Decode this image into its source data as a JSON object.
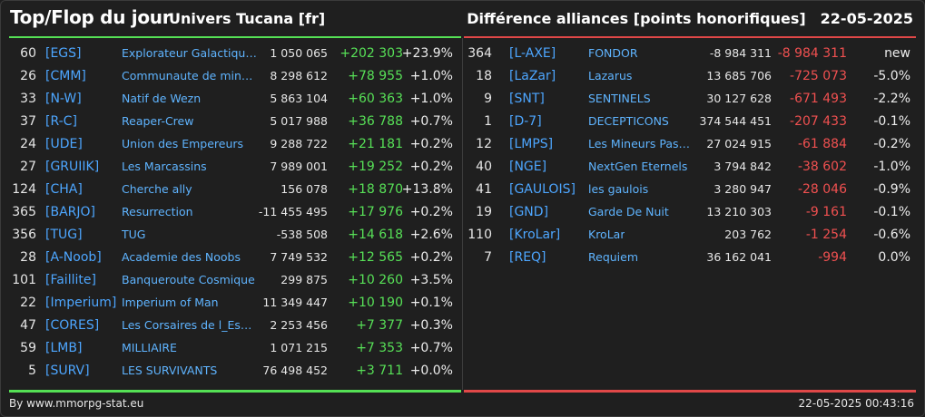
{
  "header": {
    "title": "Top/Flop du jour",
    "subtitle": "Univers Tucana [fr]",
    "right_title": "Différence alliances [points honorifiques]",
    "date": "22-05-2025"
  },
  "colors": {
    "positive": "#57e057",
    "negative": "#ef5050",
    "link": "#5fb4ff",
    "top_bar": "#55e055",
    "flop_bar": "#e04848"
  },
  "top": [
    {
      "rank": "60",
      "tag": "[EGS]",
      "name": "Explorateur Galactique S",
      "total": "1 050 065",
      "diff": "+202 303",
      "pct": "+23.9%"
    },
    {
      "rank": "26",
      "tag": "[CMM]",
      "name": "Communaute de mineurs",
      "total": "8 298 612",
      "diff": "+78 955",
      "pct": "+1.0%"
    },
    {
      "rank": "33",
      "tag": "[N-W]",
      "name": "Natif de Wezn",
      "total": "5 863 104",
      "diff": "+60 363",
      "pct": "+1.0%"
    },
    {
      "rank": "37",
      "tag": "[R-C]",
      "name": "Reaper-Crew",
      "total": "5 017 988",
      "diff": "+36 788",
      "pct": "+0.7%"
    },
    {
      "rank": "24",
      "tag": "[UDE]",
      "name": "Union des Empereurs",
      "total": "9 288 722",
      "diff": "+21 181",
      "pct": "+0.2%"
    },
    {
      "rank": "27",
      "tag": "[GRUIIK]",
      "name": "Les Marcassins",
      "total": "7 989 001",
      "diff": "+19 252",
      "pct": "+0.2%"
    },
    {
      "rank": "124",
      "tag": "[CHA]",
      "name": "Cherche ally",
      "total": "156 078",
      "diff": "+18 870",
      "pct": "+13.8%"
    },
    {
      "rank": "365",
      "tag": "[BARJO]",
      "name": "Resurrection",
      "total": "-11 455 495",
      "diff": "+17 976",
      "pct": "+0.2%"
    },
    {
      "rank": "356",
      "tag": "[TUG]",
      "name": "TUG",
      "total": "-538 508",
      "diff": "+14 618",
      "pct": "+2.6%"
    },
    {
      "rank": "28",
      "tag": "[A-Noob]",
      "name": "Academie des Noobs",
      "total": "7 749 532",
      "diff": "+12 565",
      "pct": "+0.2%"
    },
    {
      "rank": "101",
      "tag": "[Faillite]",
      "name": "Banqueroute Cosmique",
      "total": "299 875",
      "diff": "+10 260",
      "pct": "+3.5%"
    },
    {
      "rank": "22",
      "tag": "[Imperium]",
      "name": "Imperium of Man",
      "total": "11 349 447",
      "diff": "+10 190",
      "pct": "+0.1%"
    },
    {
      "rank": "47",
      "tag": "[CORES]",
      "name": "Les Corsaires de l_Espace",
      "total": "2 253 456",
      "diff": "+7 377",
      "pct": "+0.3%"
    },
    {
      "rank": "59",
      "tag": "[LMB]",
      "name": "MILLIAIRE",
      "total": "1 071 215",
      "diff": "+7 353",
      "pct": "+0.7%"
    },
    {
      "rank": "5",
      "tag": "[SURV]",
      "name": "LES SURVIVANTS",
      "total": "76 498 452",
      "diff": "+3 711",
      "pct": "+0.0%"
    }
  ],
  "flop": [
    {
      "rank": "364",
      "tag": "[L-AXE]",
      "name": "FONDOR",
      "total": "-8 984 311",
      "diff": "-8 984 311",
      "pct": "new"
    },
    {
      "rank": "18",
      "tag": "[LaZar]",
      "name": "Lazarus",
      "total": "13 685 706",
      "diff": "-725 073",
      "pct": "-5.0%"
    },
    {
      "rank": "9",
      "tag": "[SNT]",
      "name": "SENTINELS",
      "total": "30 127 628",
      "diff": "-671 493",
      "pct": "-2.2%"
    },
    {
      "rank": "1",
      "tag": "[D-7]",
      "name": "DECEPTICONS",
      "total": "374 544 451",
      "diff": "-207 433",
      "pct": "-0.1%"
    },
    {
      "rank": "12",
      "tag": "[LMPS]",
      "name": "Les Mineurs Pas ...",
      "total": "27 024 915",
      "diff": "-61 884",
      "pct": "-0.2%"
    },
    {
      "rank": "40",
      "tag": "[NGE]",
      "name": "NextGen Eternels",
      "total": "3 794 842",
      "diff": "-38 602",
      "pct": "-1.0%"
    },
    {
      "rank": "41",
      "tag": "[GAULOIS]",
      "name": "les gaulois",
      "total": "3 280 947",
      "diff": "-28 046",
      "pct": "-0.9%"
    },
    {
      "rank": "19",
      "tag": "[GND]",
      "name": "Garde De Nuit",
      "total": "13 210 303",
      "diff": "-9 161",
      "pct": "-0.1%"
    },
    {
      "rank": "110",
      "tag": "[KroLar]",
      "name": "KroLar",
      "total": "203 762",
      "diff": "-1 254",
      "pct": "-0.6%"
    },
    {
      "rank": "7",
      "tag": "[REQ]",
      "name": "Requiem",
      "total": "36 162 041",
      "diff": "-994",
      "pct": "0.0%"
    }
  ],
  "footer": {
    "source": "By www.mmorpg-stat.eu",
    "timestamp": "22-05-2025 00:43:16"
  }
}
